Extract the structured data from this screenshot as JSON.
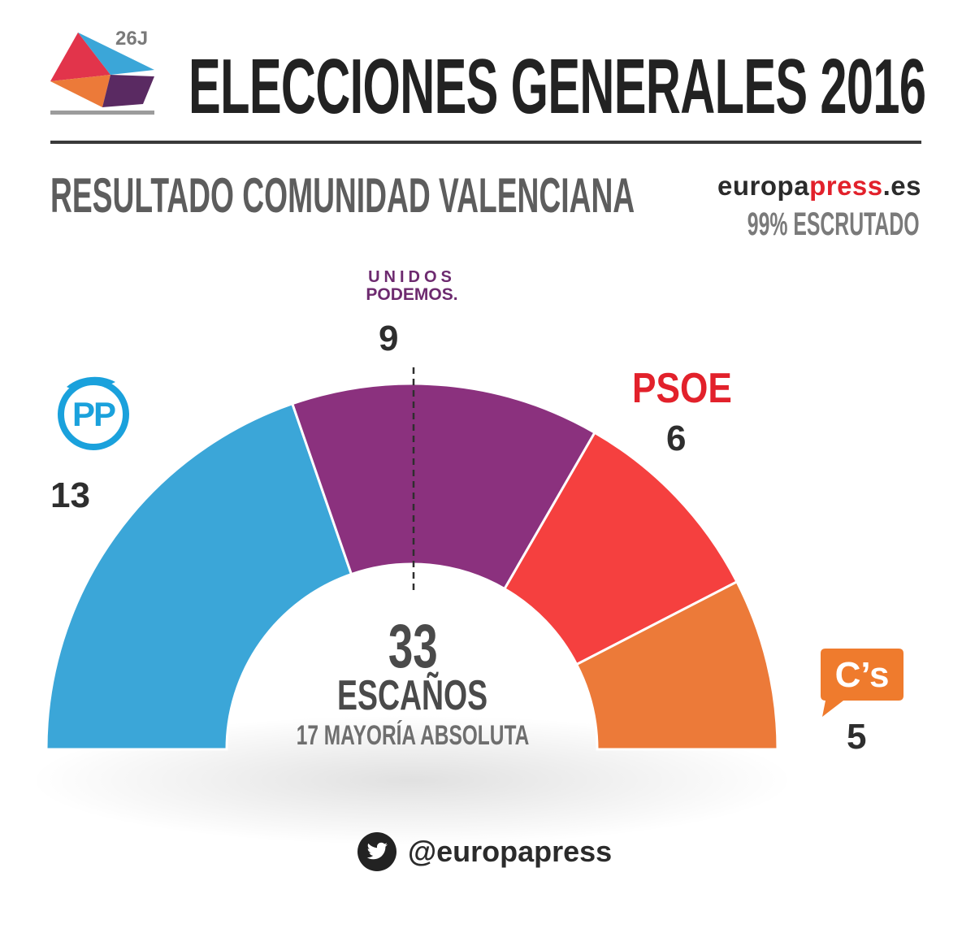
{
  "header": {
    "badge": "26J",
    "title": "ELECCIONES GENERALES 2016"
  },
  "subtitle": "RESULTADO COMUNIDAD VALENCIANA",
  "brand": {
    "name_prefix": "europa",
    "name_accent": "press",
    "name_suffix": ".es"
  },
  "scrutiny": "99% ESCRUTADO",
  "colors": {
    "pp": "#3ba6d8",
    "up": "#8b317e",
    "psoe": "#f5403f",
    "cs": "#ec7a39"
  },
  "parties": {
    "pp": {
      "logo_text": "PP",
      "icon": "pp-logo-icon"
    },
    "up": {
      "logo_line1": "UNIDOS",
      "logo_line2": "PODEMOS."
    },
    "psoe": {
      "logo_text": "PSOE"
    },
    "cs": {
      "logo_text": "C’s",
      "icon": "cs-logo-icon"
    }
  },
  "chart_data": {
    "type": "pie",
    "subtype": "parliament-semicircle",
    "categories": [
      "PP",
      "UNIDOS PODEMOS",
      "PSOE",
      "C's"
    ],
    "values": [
      13,
      9,
      6,
      5
    ],
    "labels": [
      "13",
      "9",
      "6",
      "5"
    ],
    "total": 33,
    "total_label": "33",
    "center_label": "ESCAÑOS",
    "majority_label": "17 MAYORÍA ABSOLUTA",
    "majority": 17
  },
  "footer": {
    "twitter_icon": "twitter-icon",
    "handle": "@europapress"
  }
}
